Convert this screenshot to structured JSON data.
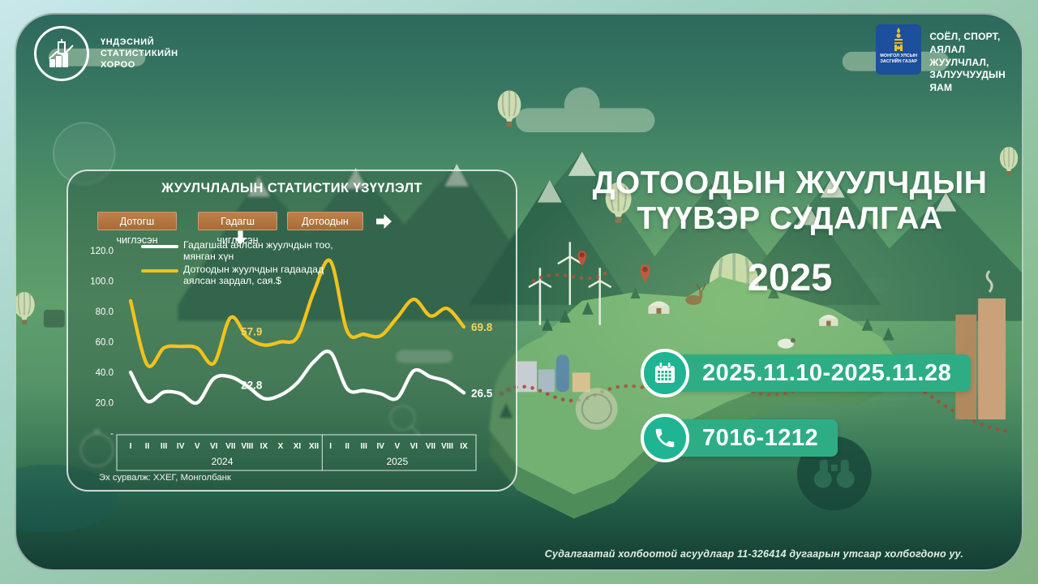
{
  "header": {
    "nso": {
      "line1": "ҮНДЭСНИЙ",
      "line2": "СТАТИСТИКИЙН",
      "line3": "ХОРОО"
    },
    "ministry": {
      "emblem_line1": "МОНГОЛ УЛСЫН",
      "emblem_line2": "ЗАСГИЙН ГАЗАР",
      "line1": "СОЁЛ, СПОРТ,",
      "line2": "АЯЛАЛ ЖУУЛЧЛАЛ,",
      "line3": "ЗАЛУУЧУУДЫН ЯАМ"
    }
  },
  "chart_panel": {
    "title": "ЖУУЛЧЛАЛЫН СТАТИСТИК ҮЗҮҮЛЭЛТ",
    "tabs": [
      {
        "label": "Дотогш чиглэсэн"
      },
      {
        "label": "Гадагш чиглэсэн"
      },
      {
        "label": "Дотоодын"
      }
    ],
    "source": "Эх сурвалж: ХХЕГ, Монголбанк"
  },
  "chart_data": {
    "type": "line",
    "title": "ЖУУЛЧЛАЛЫН СТАТИСТИК ҮЗҮҮЛЭЛТ",
    "xlabel": "",
    "ylabel": "",
    "grid": false,
    "legend_position": "top-left",
    "ylim": [
      0,
      120
    ],
    "x": [
      "I",
      "II",
      "III",
      "IV",
      "V",
      "VI",
      "VII",
      "VIII",
      "IX",
      "X",
      "XI",
      "XII",
      "I",
      "II",
      "III",
      "IV",
      "V",
      "VI",
      "VII",
      "VIII",
      "IX"
    ],
    "year_groups": [
      {
        "year": "2024",
        "months": 12
      },
      {
        "year": "2025",
        "months": 9
      }
    ],
    "yticks": [
      {
        "label": "120.0",
        "value": 120
      },
      {
        "label": "100.0",
        "value": 100
      },
      {
        "label": "80.0",
        "value": 80
      },
      {
        "label": "60.0",
        "value": 60
      },
      {
        "label": "40.0",
        "value": 40
      },
      {
        "label": "20.0",
        "value": 20
      },
      {
        "label": "-",
        "value": 0
      }
    ],
    "series": [
      {
        "name": "Гадагшаа аялсан жуулчдын тоо, мянган хүн",
        "color": "#ffffff",
        "callout_color": "#ffffff",
        "values": [
          40,
          21,
          27,
          26,
          20,
          36,
          37,
          31,
          22.8,
          25,
          33,
          47,
          53,
          29,
          28,
          26,
          23,
          41,
          37,
          34,
          26.5
        ],
        "callouts": [
          {
            "index": 8,
            "text": "22.8"
          },
          {
            "index": 20,
            "text": "26.5"
          }
        ]
      },
      {
        "name": "Дотоодын жуулчдын гадаадад аялсан зардал, сая.$",
        "color": "#f2c21c",
        "callout_color": "#f6d35a",
        "values": [
          87,
          45,
          56,
          57,
          56,
          46,
          76,
          63,
          57.9,
          60,
          63,
          93,
          113,
          67,
          65,
          64,
          76,
          88,
          77,
          82,
          69.8
        ],
        "callouts": [
          {
            "index": 8,
            "text": "57.9"
          },
          {
            "index": 20,
            "text": "69.8"
          }
        ]
      }
    ]
  },
  "main": {
    "title_line1": "ДОТООДЫН ЖУУЛЧДЫН",
    "title_line2": "ТҮҮВЭР СУДАЛГАА",
    "year": "2025",
    "date_range": "2025.11.10-2025.11.28",
    "phone": "7016-1212",
    "footer_note": "Судалгаатай холбоотой асуудлаар 11-326414 дугаарын утсаар холбогдоно уу."
  },
  "colors": {
    "accent_yellow": "#f2c21c",
    "badge_teal": "#1fb592",
    "badge_pill": "#2ead85",
    "tab_brown": "#ad7440",
    "card_dark": "#143e33"
  }
}
